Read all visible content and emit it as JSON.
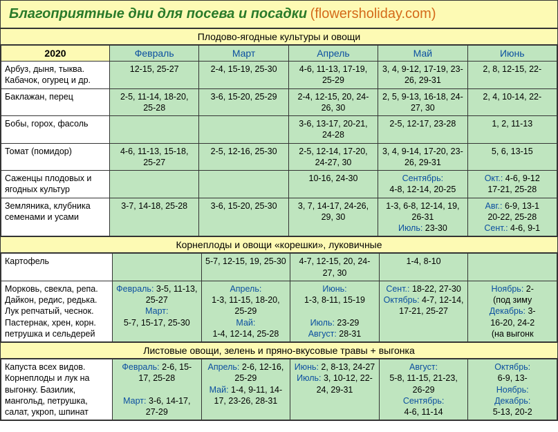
{
  "title": {
    "main": "Благоприятные дни для посева и посадки",
    "source": "(flowersholiday.com)"
  },
  "colors": {
    "header_bg": "#fdfab4",
    "cell_bg": "#bfe5bf",
    "link_color": "#0b4fa0",
    "title_green": "#2a7a2a",
    "title_orange": "#d46a1a"
  },
  "year": "2020",
  "months": [
    "Февраль",
    "Март",
    "Апрель",
    "Май",
    "Июнь"
  ],
  "sections": [
    {
      "header": "Плодово-ягодные культуры и овощи",
      "rows": [
        {
          "crop": "Арбуз, дыня, тыква. Кабачок, огурец и др.",
          "cells": [
            "12-15, 25-27",
            "2-4, 15-19, 25-30",
            "4-6, 11-13, 17-19, 25-29",
            "3, 4, 9-12, 17-19, 23-26, 29-31",
            "2, 8, 12-15, 22-"
          ]
        },
        {
          "crop": "Баклажан, перец",
          "cells": [
            "2-5, 11-14, 18-20, 25-28",
            "3-6, 15-20, 25-29",
            "2-4, 12-15, 20, 24-26, 30",
            "2, 5, 9-13, 16-18, 24-27, 30",
            "2, 4, 10-14, 22-"
          ]
        },
        {
          "crop": "Бобы, горох, фасоль",
          "cells": [
            "",
            "",
            "3-6, 13-17, 20-21, 24-28",
            "2-5, 12-17, 23-28",
            "1, 2, 11-13"
          ]
        },
        {
          "crop": "Томат (помидор)",
          "cells": [
            "4-6, 11-13, 15-18, 25-27",
            "2-5, 12-16, 25-30",
            "2-5, 12-14, 17-20, 24-27, 30",
            "3, 4, 9-14, 17-20, 23-26, 29-31",
            "5, 6, 13-15"
          ]
        },
        {
          "crop": "Саженцы плодовых и ягодных культур",
          "cells": [
            "",
            "",
            "10-16, 24-30",
            "<span class='blue'>Сентябрь:</span><br>4-8, 12-14, 20-25",
            "<span class='blue'>Окт.:</span> 4-6, 9-12<br>17-21, 25-28"
          ]
        },
        {
          "crop": "Земляника, клубника семенами и усами",
          "cells": [
            "3-7, 14-18, 25-28",
            "3-6, 15-20, 25-30",
            "3, 7, 14-17, 24-26, 29, 30",
            "1-3, 6-8, 12-14, 19, 26-31<br><span class='blue'>Июль:</span> 23-30",
            "<span class='blue'>Авг.:</span> 6-9, 13-1<br>20-22, 25-28<br><span class='blue'>Сент.:</span> 4-6, 9-1"
          ]
        }
      ]
    },
    {
      "header": "Корнеплоды и овощи «корешки», луковичные",
      "rows": [
        {
          "crop": "Картофель",
          "cells": [
            "",
            "5-7, 12-15, 19, 25-30",
            "4-7, 12-15, 20, 24-27, 30",
            "1-4, 8-10",
            ""
          ]
        },
        {
          "crop": "Морковь, свекла, репа. Дайкон, редис, редька. Лук репчатый, чеснок. Пастернак, хрен, корн. петрушка и сельдерей",
          "cells": [
            "<span class='blue'>Февраль:</span> 3-5, 11-13, 25-27<br><span class='blue'>Март:</span><br>5-7, 15-17, 25-30",
            "<span class='blue'>Апрель:</span><br>1-3, 11-15, 18-20, 25-29<br><span class='blue'>Май:</span><br>1-4, 12-14, 25-28",
            "<span class='blue'>Июнь:</span><br>1-3, 8-11, 15-19<br><br><span class='blue'>Июль:</span> 23-29<br><span class='blue'>Август:</span> 28-31",
            "<span class='blue'>Сент.:</span> 18-22, 27-30<br><span class='blue'>Октябрь:</span> 4-7, 12-14, 17-21, 25-27",
            "<span class='blue'>Ноябрь:</span> 2-<br>(под зиму<br><span class='blue'>Декабрь:</span> 3-<br>16-20, 24-2<br>(на выгонк"
          ]
        }
      ]
    },
    {
      "header": "Листовые овощи, зелень и пряно-вкусовые травы + выгонка",
      "rows": [
        {
          "crop": "Капуста всех видов. Корнеплоды и лук на выгонку. Базилик, мангольд, петрушка, салат, укроп, шпинат",
          "cells": [
            "<span class='blue'>Февраль:</span> 2-6, 15-17, 25-28<br><br><span class='blue'>Март:</span> 3-6, 14-17, 27-29",
            "<span class='blue'>Апрель:</span> 2-6, 12-16, 25-29<br><span class='blue'>Май:</span> 1-4, 9-11, 14-17, 23-26, 28-31",
            "<span class='blue'>Июнь:</span> 2, 8-13, 24-27<br><span class='blue'>Июль:</span> 3, 10-12, 22-24, 29-31",
            "<span class='blue'>Август:</span><br>5-8, 11-15, 21-23, 26-29<br><span class='blue'>Сентябрь:</span><br>4-6, 11-14",
            "<span class='blue'>Октябрь:</span><br>6-9, 13-<br><span class='blue'>Ноябрь:</span><br><span class='blue'>Декабрь:</span><br>5-13, 20-2"
          ]
        }
      ]
    }
  ]
}
